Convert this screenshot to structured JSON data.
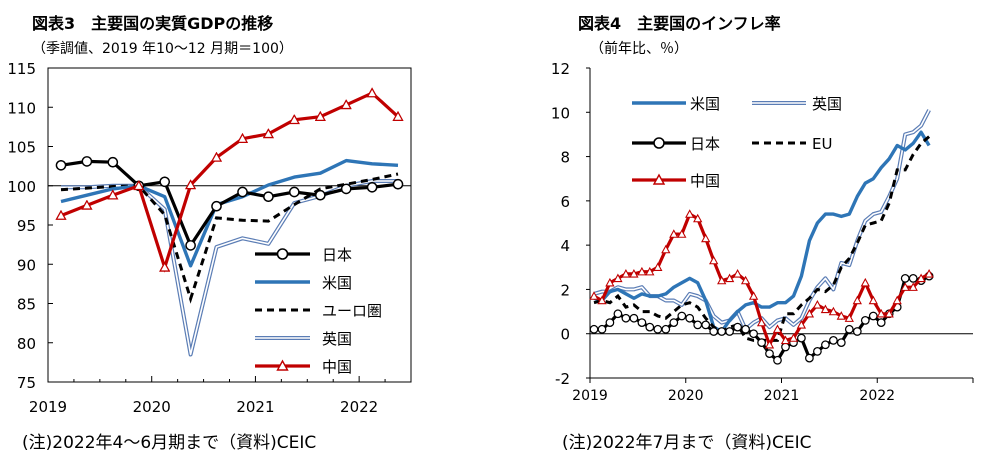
{
  "charts": [
    {
      "title": "図表3　主要国の実質GDPの推移",
      "unit": "（季調値、2019 年10～12 月期＝100）",
      "note": "(注)2022年4～6月期まで（資料)CEIC"
    },
    {
      "title": "図表4　主要国のインフレ率",
      "unit": "（前年比、％）",
      "note": "(注)2022年7月まで（資料)CEIC"
    }
  ],
  "colors": {
    "japan": "#000000",
    "us": "#2E75B6",
    "uk": "#5B7DB5",
    "eu": "#000000",
    "china": "#C00000"
  },
  "chart_data": [
    {
      "type": "line",
      "title": "図表3　主要国の実質GDPの推移",
      "unit": "（季調値、2019 年10～12 月期＝100）",
      "x_unit": "quarter",
      "x": [
        "2019Q1",
        "2019Q2",
        "2019Q3",
        "2019Q4",
        "2020Q1",
        "2020Q2",
        "2020Q3",
        "2020Q4",
        "2021Q1",
        "2021Q2",
        "2021Q3",
        "2021Q4",
        "2022Q1",
        "2022Q2"
      ],
      "xticks": [
        "2019",
        "2020",
        "2021",
        "2022"
      ],
      "ylim": [
        75,
        115
      ],
      "yticks": [
        75,
        80,
        85,
        90,
        95,
        100,
        105,
        110,
        115
      ],
      "reference_line": 100,
      "legend_position": "bottom-right",
      "series": [
        {
          "name": "日本",
          "key": "japan",
          "style": "solid-circle",
          "values": [
            102.6,
            103.1,
            103.0,
            100.0,
            100.5,
            92.4,
            97.4,
            99.2,
            98.6,
            99.2,
            98.8,
            99.6,
            99.8,
            100.2
          ]
        },
        {
          "name": "米国",
          "key": "us",
          "style": "solid",
          "values": [
            98.0,
            98.8,
            99.6,
            100.0,
            98.6,
            89.8,
            97.6,
            98.6,
            100.1,
            101.1,
            101.6,
            103.2,
            102.8,
            102.6
          ]
        },
        {
          "name": "ユーロ圏",
          "key": "eu",
          "style": "dashed",
          "values": [
            99.5,
            99.7,
            99.9,
            100.0,
            96.3,
            85.6,
            95.9,
            95.6,
            95.5,
            97.6,
            99.6,
            100.2,
            100.8,
            101.5
          ]
        },
        {
          "name": "英国",
          "key": "uk",
          "style": "double",
          "values": [
            99.8,
            99.8,
            100.0,
            100.0,
            97.0,
            78.5,
            92.2,
            93.3,
            92.6,
            97.8,
            98.7,
            100.0,
            100.6,
            100.6
          ]
        },
        {
          "name": "中国",
          "key": "china",
          "style": "solid-triangle",
          "values": [
            96.2,
            97.5,
            98.8,
            100.0,
            89.6,
            100.1,
            103.6,
            106.0,
            106.6,
            108.4,
            108.8,
            110.3,
            111.8,
            108.8
          ]
        }
      ]
    },
    {
      "type": "line",
      "title": "図表4　主要国のインフレ率",
      "unit": "（前年比、％）",
      "x_unit": "month",
      "x_start": "2019-01",
      "x_end": "2022-07",
      "xticks": [
        "2019",
        "2020",
        "2021",
        "2022"
      ],
      "ylim": [
        -2,
        12
      ],
      "yticks": [
        -2,
        0,
        2,
        4,
        6,
        8,
        10,
        12
      ],
      "reference_line": 0,
      "legend_position": "top-left",
      "series": [
        {
          "name": "米国",
          "key": "us",
          "style": "solid",
          "values": [
            1.6,
            1.5,
            1.9,
            2.0,
            1.8,
            1.6,
            1.8,
            1.7,
            1.7,
            1.8,
            2.1,
            2.3,
            2.5,
            2.3,
            1.5,
            0.3,
            0.1,
            0.6,
            1.0,
            1.3,
            1.4,
            1.2,
            1.2,
            1.4,
            1.4,
            1.7,
            2.6,
            4.2,
            5.0,
            5.4,
            5.4,
            5.3,
            5.4,
            6.2,
            6.8,
            7.0,
            7.5,
            7.9,
            8.5,
            8.3,
            8.6,
            9.1,
            8.5
          ]
        },
        {
          "name": "英国",
          "key": "uk",
          "style": "double",
          "values": [
            1.8,
            1.9,
            1.9,
            2.1,
            2.0,
            2.0,
            2.1,
            1.7,
            1.7,
            1.5,
            1.5,
            1.3,
            1.8,
            1.7,
            1.5,
            0.8,
            0.5,
            0.6,
            1.0,
            0.2,
            0.5,
            0.7,
            0.3,
            0.6,
            0.7,
            0.4,
            0.7,
            1.5,
            2.1,
            2.5,
            2.0,
            3.2,
            3.1,
            4.2,
            5.1,
            5.4,
            5.5,
            6.2,
            7.0,
            9.0,
            9.1,
            9.4,
            10.1
          ]
        },
        {
          "name": "日本",
          "key": "japan",
          "style": "solid-circle",
          "values": [
            0.2,
            0.2,
            0.5,
            0.9,
            0.7,
            0.7,
            0.5,
            0.3,
            0.2,
            0.2,
            0.5,
            0.8,
            0.7,
            0.4,
            0.4,
            0.1,
            0.1,
            0.1,
            0.3,
            0.2,
            0.0,
            -0.4,
            -0.9,
            -1.2,
            -0.6,
            -0.4,
            -0.2,
            -1.1,
            -0.8,
            -0.5,
            -0.3,
            -0.4,
            0.2,
            0.1,
            0.6,
            0.8,
            0.5,
            0.9,
            1.2,
            2.5,
            2.5,
            2.4,
            2.6
          ]
        },
        {
          "name": "EU",
          "key": "eu",
          "style": "dashed",
          "values": [
            1.4,
            1.5,
            1.4,
            1.7,
            1.2,
            1.3,
            1.0,
            1.0,
            0.8,
            0.7,
            1.0,
            1.3,
            1.4,
            1.2,
            0.7,
            0.3,
            0.1,
            0.3,
            0.4,
            -0.2,
            -0.3,
            -0.3,
            -0.3,
            -0.3,
            0.9,
            0.9,
            1.3,
            1.6,
            2.0,
            1.9,
            2.2,
            3.0,
            3.4,
            4.1,
            4.9,
            5.0,
            5.1,
            5.9,
            7.4,
            7.4,
            8.1,
            8.6,
            8.9
          ]
        },
        {
          "name": "中国",
          "key": "china",
          "style": "solid-triangle",
          "values": [
            1.7,
            1.5,
            2.3,
            2.5,
            2.7,
            2.7,
            2.8,
            2.8,
            3.0,
            3.8,
            4.5,
            4.5,
            5.4,
            5.2,
            4.3,
            3.3,
            2.4,
            2.5,
            2.7,
            2.4,
            1.7,
            0.5,
            -0.5,
            0.2,
            -0.3,
            -0.2,
            0.4,
            0.9,
            1.3,
            1.1,
            1.0,
            0.8,
            0.7,
            1.5,
            2.3,
            1.5,
            0.9,
            0.9,
            1.5,
            2.1,
            2.1,
            2.5,
            2.7
          ]
        }
      ]
    }
  ]
}
